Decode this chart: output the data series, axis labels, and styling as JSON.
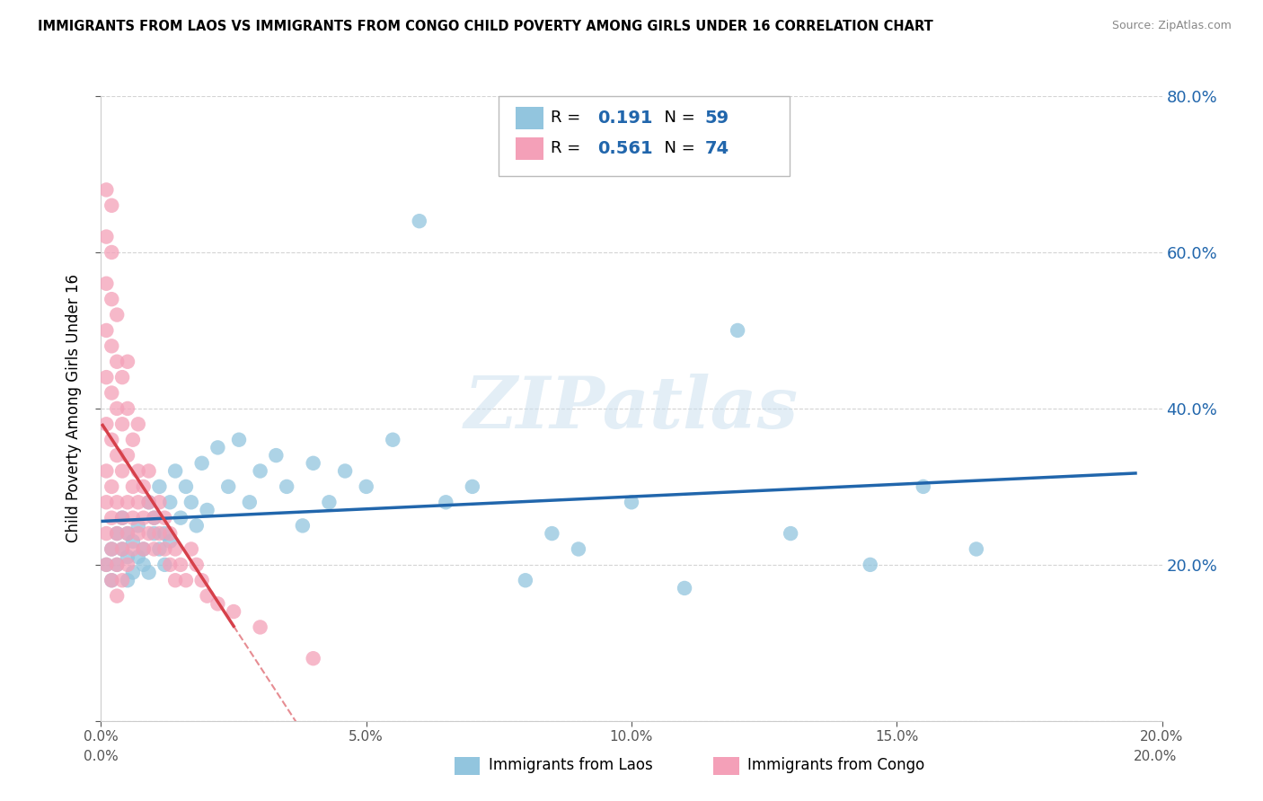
{
  "title": "IMMIGRANTS FROM LAOS VS IMMIGRANTS FROM CONGO CHILD POVERTY AMONG GIRLS UNDER 16 CORRELATION CHART",
  "source": "Source: ZipAtlas.com",
  "ylabel": "Child Poverty Among Girls Under 16",
  "legend_label_1": "Immigrants from Laos",
  "legend_label_2": "Immigrants from Congo",
  "R1": 0.191,
  "N1": 59,
  "R2": 0.561,
  "N2": 74,
  "xlim": [
    0.0,
    0.2
  ],
  "ylim": [
    0.0,
    0.8
  ],
  "xticks": [
    0.0,
    0.05,
    0.1,
    0.15,
    0.2
  ],
  "yticks_left": [
    0.0,
    0.2,
    0.4,
    0.6,
    0.8
  ],
  "yticks_right": [
    0.2,
    0.4,
    0.6,
    0.8
  ],
  "color_blue": "#92c5de",
  "color_pink": "#f4a0b8",
  "color_line_blue": "#2166ac",
  "color_line_pink": "#d6404a",
  "color_stat": "#2166ac",
  "watermark_color": "#cce0ef",
  "background_color": "#ffffff",
  "grid_color": "#d4d4d4",
  "laos_x": [
    0.001,
    0.002,
    0.002,
    0.003,
    0.003,
    0.004,
    0.004,
    0.005,
    0.005,
    0.005,
    0.006,
    0.006,
    0.007,
    0.007,
    0.008,
    0.008,
    0.009,
    0.009,
    0.01,
    0.01,
    0.011,
    0.011,
    0.012,
    0.012,
    0.013,
    0.013,
    0.014,
    0.015,
    0.016,
    0.017,
    0.018,
    0.019,
    0.02,
    0.022,
    0.024,
    0.026,
    0.028,
    0.03,
    0.033,
    0.035,
    0.038,
    0.04,
    0.043,
    0.046,
    0.05,
    0.055,
    0.06,
    0.065,
    0.07,
    0.08,
    0.085,
    0.09,
    0.1,
    0.11,
    0.12,
    0.13,
    0.145,
    0.155,
    0.165
  ],
  "laos_y": [
    0.2,
    0.22,
    0.18,
    0.24,
    0.2,
    0.26,
    0.22,
    0.18,
    0.24,
    0.21,
    0.19,
    0.23,
    0.21,
    0.25,
    0.2,
    0.22,
    0.28,
    0.19,
    0.24,
    0.26,
    0.22,
    0.3,
    0.24,
    0.2,
    0.28,
    0.23,
    0.32,
    0.26,
    0.3,
    0.28,
    0.25,
    0.33,
    0.27,
    0.35,
    0.3,
    0.36,
    0.28,
    0.32,
    0.34,
    0.3,
    0.25,
    0.33,
    0.28,
    0.32,
    0.3,
    0.36,
    0.64,
    0.28,
    0.3,
    0.18,
    0.24,
    0.22,
    0.28,
    0.17,
    0.5,
    0.24,
    0.2,
    0.3,
    0.22
  ],
  "congo_x": [
    0.001,
    0.001,
    0.001,
    0.001,
    0.001,
    0.001,
    0.001,
    0.001,
    0.001,
    0.001,
    0.002,
    0.002,
    0.002,
    0.002,
    0.002,
    0.002,
    0.002,
    0.002,
    0.002,
    0.002,
    0.003,
    0.003,
    0.003,
    0.003,
    0.003,
    0.003,
    0.003,
    0.003,
    0.004,
    0.004,
    0.004,
    0.004,
    0.004,
    0.004,
    0.005,
    0.005,
    0.005,
    0.005,
    0.005,
    0.005,
    0.006,
    0.006,
    0.006,
    0.006,
    0.007,
    0.007,
    0.007,
    0.007,
    0.008,
    0.008,
    0.008,
    0.009,
    0.009,
    0.009,
    0.01,
    0.01,
    0.011,
    0.011,
    0.012,
    0.012,
    0.013,
    0.013,
    0.014,
    0.014,
    0.015,
    0.016,
    0.017,
    0.018,
    0.019,
    0.02,
    0.022,
    0.025,
    0.03,
    0.04
  ],
  "congo_y": [
    0.2,
    0.24,
    0.28,
    0.32,
    0.38,
    0.44,
    0.5,
    0.56,
    0.62,
    0.68,
    0.18,
    0.22,
    0.26,
    0.3,
    0.36,
    0.42,
    0.48,
    0.54,
    0.6,
    0.66,
    0.16,
    0.2,
    0.24,
    0.28,
    0.34,
    0.4,
    0.46,
    0.52,
    0.18,
    0.22,
    0.26,
    0.32,
    0.38,
    0.44,
    0.2,
    0.24,
    0.28,
    0.34,
    0.4,
    0.46,
    0.22,
    0.26,
    0.3,
    0.36,
    0.24,
    0.28,
    0.32,
    0.38,
    0.22,
    0.26,
    0.3,
    0.24,
    0.28,
    0.32,
    0.22,
    0.26,
    0.24,
    0.28,
    0.22,
    0.26,
    0.2,
    0.24,
    0.18,
    0.22,
    0.2,
    0.18,
    0.22,
    0.2,
    0.18,
    0.16,
    0.15,
    0.14,
    0.12,
    0.08
  ]
}
